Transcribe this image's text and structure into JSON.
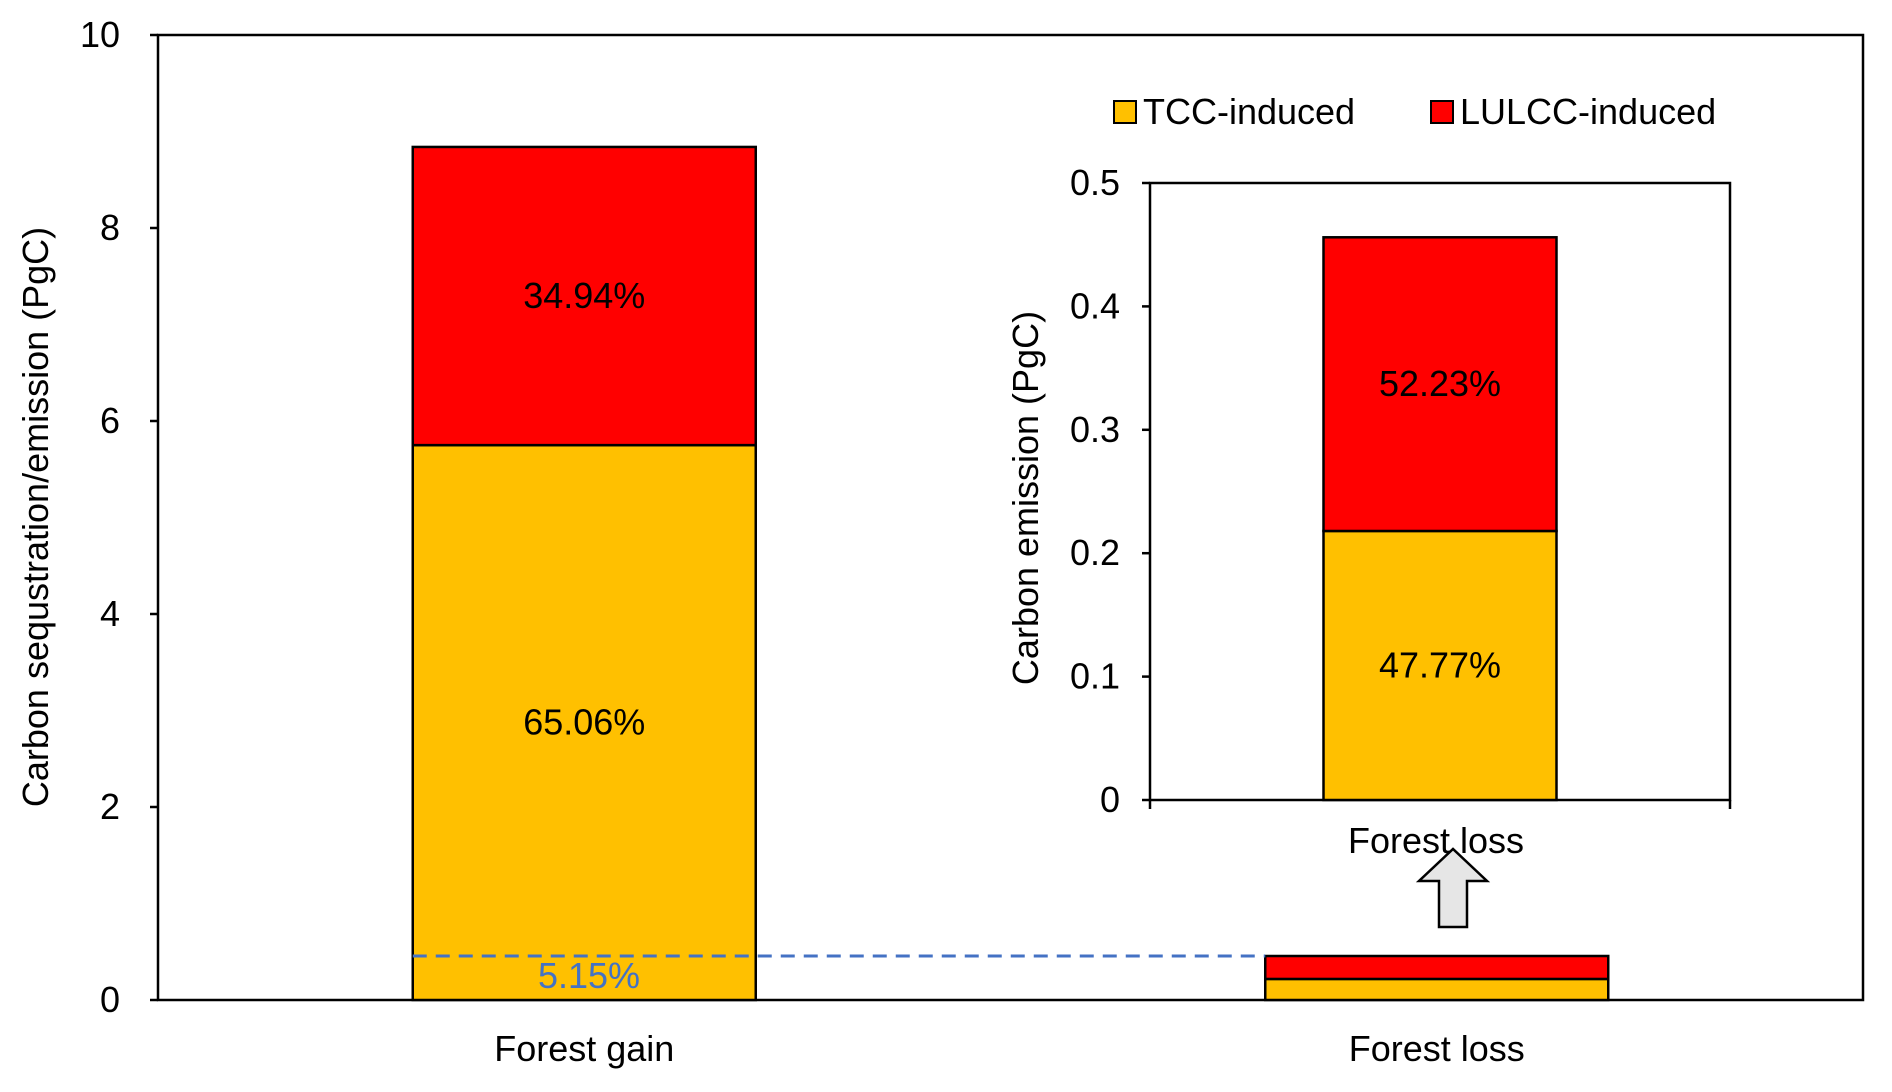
{
  "colors": {
    "tcc": "#FFC000",
    "lulcc": "#FF0000",
    "dashed": "#4472C4",
    "arrow_fill": "#E6E6E6",
    "axis": "#000000"
  },
  "chart_data": [
    {
      "type": "bar",
      "stacked": true,
      "categories": [
        "Forest gain",
        "Forest loss"
      ],
      "series": [
        {
          "name": "TCC-induced",
          "values": [
            5.75,
            0.218
          ],
          "labels": [
            "65.06%",
            ""
          ]
        },
        {
          "name": "LULCC-induced",
          "values": [
            3.09,
            0.238
          ],
          "labels": [
            "34.94%",
            ""
          ]
        }
      ],
      "ylabel": "Carbon sequstration/emission (PgC)",
      "ylim": [
        0,
        10
      ],
      "yticks": [
        "0",
        "2",
        "4",
        "6",
        "8",
        "10"
      ],
      "grid": false,
      "annotation": {
        "text": "5.15%",
        "reference_value": 0.456,
        "style": "dashed line"
      }
    },
    {
      "type": "bar",
      "stacked": true,
      "inset": true,
      "categories": [
        "Forest loss"
      ],
      "series": [
        {
          "name": "TCC-induced",
          "values": [
            0.218
          ],
          "labels": [
            "47.77%"
          ]
        },
        {
          "name": "LULCC-induced",
          "values": [
            0.238
          ],
          "labels": [
            "52.23%"
          ]
        }
      ],
      "ylabel": "Carbon emission (PgC)",
      "ylim": [
        0,
        0.5
      ],
      "yticks": [
        "0",
        "0.1",
        "0.2",
        "0.3",
        "0.4",
        "0.5"
      ],
      "legend": [
        "TCC-induced",
        "LULCC-induced"
      ],
      "legend_position": "top",
      "grid": false
    }
  ]
}
